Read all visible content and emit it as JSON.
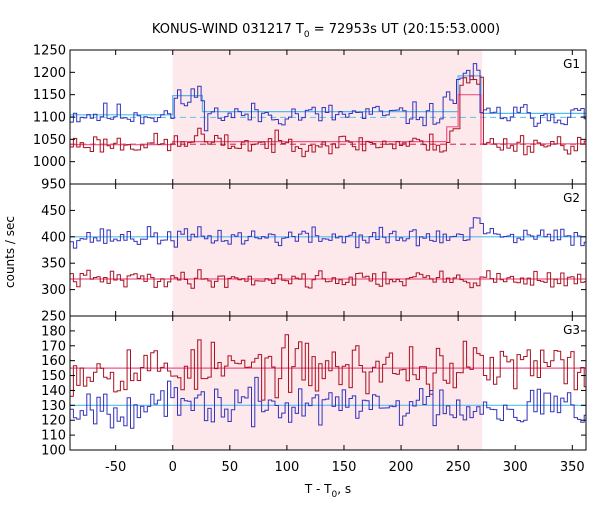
{
  "title": "KONUS-WIND 031217 T",
  "title_sub": "0",
  "title_rest": " = 72953s UT (20:15:53.000)",
  "xlabel": "T - T",
  "xlabel_sub": "0",
  "xlabel_rest": ", s",
  "ylabel": "counts / sec",
  "colors": {
    "blue": "#3333bb",
    "red": "#aa1122",
    "blue_bg": "#66ccee",
    "red_bg": "#dd4466",
    "blue_fit": "#55bbee",
    "red_fit": "#ee5588",
    "interval": "#fde8ec"
  },
  "chart_data": {
    "type": "line",
    "x_range": [
      -90,
      362
    ],
    "x_ticks": [
      -50,
      0,
      50,
      100,
      150,
      200,
      250,
      300,
      350
    ],
    "shaded_interval": [
      0,
      271
    ],
    "panels": [
      {
        "label": "G1",
        "y_range": [
          950,
          1250
        ],
        "y_ticks": [
          950,
          1000,
          1050,
          1100,
          1150,
          1200,
          1250
        ],
        "series": [
          {
            "color": "blue",
            "mean": 1105,
            "noise": 13,
            "seed": 11,
            "bumps": [
              [
                14,
                26,
                45
              ],
              [
                0,
                15,
                30
              ],
              [
                248,
                268,
                90
              ],
              [
                235,
                248,
                30
              ]
            ]
          },
          {
            "color": "red",
            "mean": 1040,
            "noise": 11,
            "seed": 23,
            "bumps": [
              [
                14,
                26,
                20
              ],
              [
                240,
                250,
                35
              ],
              [
                250,
                270,
                140
              ]
            ]
          }
        ],
        "background": [
          {
            "color": "blue_bg",
            "level": 1099,
            "style": "dashed"
          },
          {
            "color": "red_bg",
            "level": 1039,
            "style": "dashed"
          }
        ],
        "fits": [
          {
            "color": "blue_fit",
            "points": [
              [
                -90,
                1105
              ],
              [
                0,
                1105
              ],
              [
                0,
                1148
              ],
              [
                26,
                1148
              ],
              [
                26,
                1112
              ],
              [
                250,
                1112
              ],
              [
                250,
                1192
              ],
              [
                270,
                1192
              ],
              [
                270,
                1108
              ],
              [
                362,
                1108
              ]
            ]
          },
          {
            "color": "red_fit",
            "points": [
              [
                -90,
                1038
              ],
              [
                0,
                1038
              ],
              [
                0,
                1045
              ],
              [
                240,
                1045
              ],
              [
                240,
                1078
              ],
              [
                250,
                1078
              ],
              [
                250,
                1150
              ],
              [
                270,
                1150
              ],
              [
                270,
                1040
              ],
              [
                362,
                1040
              ]
            ]
          }
        ]
      },
      {
        "label": "G2",
        "y_range": [
          250,
          500
        ],
        "y_ticks": [
          250,
          300,
          350,
          400,
          450
        ],
        "series": [
          {
            "color": "blue",
            "mean": 399,
            "noise": 9,
            "seed": 37,
            "bumps": [
              [
                262,
                270,
                35
              ]
            ]
          },
          {
            "color": "red",
            "mean": 320,
            "noise": 8,
            "seed": 41,
            "bumps": []
          }
        ],
        "background": [],
        "fits": [
          {
            "color": "blue_fit",
            "points": [
              [
                -90,
                400
              ],
              [
                362,
                400
              ]
            ]
          },
          {
            "color": "red_fit",
            "points": [
              [
                -90,
                320
              ],
              [
                362,
                320
              ]
            ]
          }
        ]
      },
      {
        "label": "G3",
        "y_range": [
          100,
          190
        ],
        "y_ticks": [
          100,
          110,
          120,
          130,
          140,
          150,
          160,
          170,
          180
        ],
        "series": [
          {
            "color": "red",
            "mean": 155,
            "noise": 9,
            "seed": 53,
            "bumps": []
          },
          {
            "color": "blue",
            "mean": 130,
            "noise": 7,
            "seed": 67,
            "bumps": []
          }
        ],
        "background": [],
        "fits": [
          {
            "color": "red_fit",
            "points": [
              [
                -90,
                155
              ],
              [
                362,
                155
              ]
            ]
          },
          {
            "color": "blue_fit",
            "points": [
              [
                -90,
                130
              ],
              [
                362,
                130
              ]
            ]
          }
        ]
      }
    ]
  }
}
